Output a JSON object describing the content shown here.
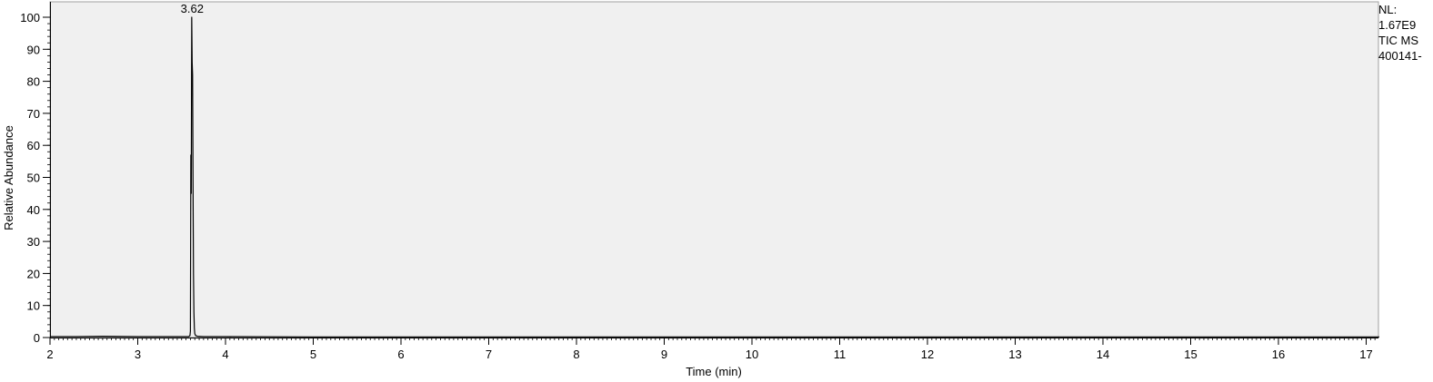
{
  "chart_data": {
    "type": "line",
    "title": "",
    "xlabel": "Time (min)",
    "ylabel": "Relative Abundance",
    "xlim": [
      2,
      17.15
    ],
    "ylim": [
      0,
      100
    ],
    "x_ticks": [
      2,
      3,
      4,
      5,
      6,
      7,
      8,
      9,
      10,
      11,
      12,
      13,
      14,
      15,
      16,
      17
    ],
    "y_ticks": [
      0,
      10,
      20,
      30,
      40,
      50,
      60,
      70,
      80,
      90,
      100
    ],
    "grid": false,
    "series": [
      {
        "name": "TIC",
        "x": [
          2.0,
          2.3,
          2.6,
          3.0,
          3.4,
          3.58,
          3.595,
          3.6,
          3.605,
          3.61,
          3.615,
          3.62,
          3.625,
          3.63,
          3.635,
          3.64,
          3.645,
          3.65,
          3.66,
          3.68,
          3.75,
          4.0,
          5.0,
          6.0,
          8.0,
          10.0,
          12.0,
          14.0,
          16.0,
          17.15
        ],
        "y": [
          0.3,
          0.3,
          0.4,
          0.3,
          0.3,
          0.3,
          0.6,
          2.0,
          57.0,
          45.0,
          100.0,
          86.0,
          82.0,
          48.0,
          20.0,
          8.0,
          3.0,
          1.2,
          0.6,
          0.4,
          0.3,
          0.3,
          0.2,
          0.2,
          0.2,
          0.2,
          0.2,
          0.2,
          0.2,
          0.2
        ]
      }
    ],
    "peak_labels": [
      {
        "x": 3.62,
        "y": 100,
        "text": "3.62"
      }
    ]
  },
  "info_panel": {
    "nl_label": "NL:",
    "nl_value": "1.67E9",
    "trace_label": "TIC  MS",
    "file_name": "400141-"
  }
}
